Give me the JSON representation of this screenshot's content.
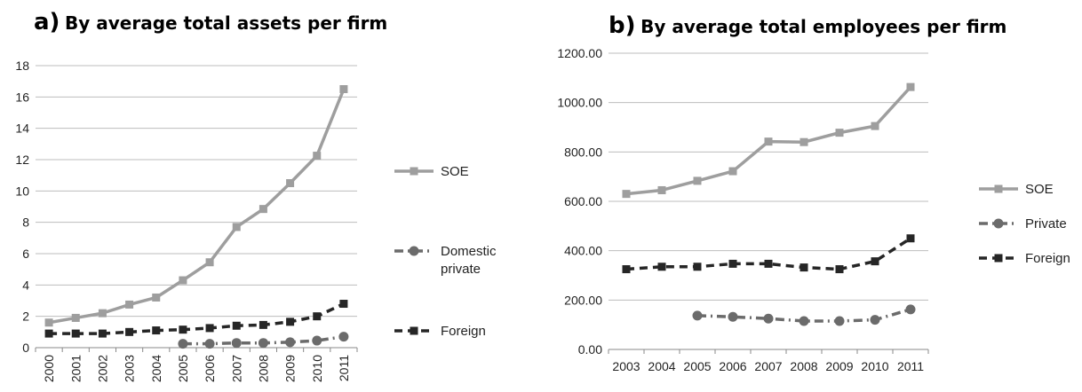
{
  "panels": [
    {
      "letter": "a)",
      "title": "By average total assets per firm"
    },
    {
      "letter": "b)",
      "title": "By average total employees per firm"
    }
  ],
  "chart_data": [
    {
      "type": "line",
      "title": "a) By average total assets per firm",
      "xlabel": "",
      "ylabel": "",
      "categories": [
        "2000",
        "2001",
        "2002",
        "2003",
        "2004",
        "2005",
        "2006",
        "2007",
        "2008",
        "2009",
        "2010",
        "2011"
      ],
      "ylim": [
        0,
        18
      ],
      "yticks": [
        "0",
        "2",
        "4",
        "6",
        "8",
        "10",
        "12",
        "14",
        "16",
        "18"
      ],
      "grid": true,
      "legend_position": "right",
      "series": [
        {
          "name": "SOE",
          "style": "solid",
          "marker": "square",
          "color": "#9e9e9e",
          "values": [
            1.6,
            1.9,
            2.2,
            2.75,
            3.2,
            4.3,
            5.45,
            7.7,
            8.85,
            10.5,
            12.25,
            16.5
          ]
        },
        {
          "name": "Domestic private",
          "legend_lines": [
            "Domestic",
            "private"
          ],
          "style": "dashdot",
          "marker": "circle",
          "color": "#6b6b6b",
          "values": [
            null,
            null,
            null,
            null,
            null,
            0.25,
            0.25,
            0.3,
            0.3,
            0.35,
            0.45,
            0.7
          ]
        },
        {
          "name": "Foreign",
          "style": "dashed",
          "marker": "square",
          "color": "#262626",
          "values": [
            0.9,
            0.9,
            0.9,
            1.0,
            1.1,
            1.15,
            1.25,
            1.4,
            1.45,
            1.65,
            2.0,
            2.8
          ]
        }
      ]
    },
    {
      "type": "line",
      "title": "b) By average total employees per firm",
      "xlabel": "",
      "ylabel": "",
      "categories": [
        "2003",
        "2004",
        "2005",
        "2006",
        "2007",
        "2008",
        "2009",
        "2010",
        "2011"
      ],
      "ylim": [
        0,
        1200
      ],
      "yticks": [
        "0.00",
        "200.00",
        "400.00",
        "600.00",
        "800.00",
        "1000.00",
        "1200.00"
      ],
      "grid": true,
      "legend_position": "right",
      "series": [
        {
          "name": "SOE",
          "style": "solid",
          "marker": "square",
          "color": "#9e9e9e",
          "values": [
            630,
            645,
            683,
            722,
            842,
            840,
            878,
            905,
            1063
          ]
        },
        {
          "name": "Private",
          "style": "dashdot",
          "marker": "circle",
          "color": "#6b6b6b",
          "values": [
            null,
            null,
            137,
            132,
            125,
            115,
            115,
            120,
            162
          ]
        },
        {
          "name": "Foreign",
          "style": "dashed",
          "marker": "square",
          "color": "#262626",
          "values": [
            325,
            335,
            335,
            347,
            347,
            332,
            325,
            357,
            450
          ]
        }
      ]
    }
  ]
}
